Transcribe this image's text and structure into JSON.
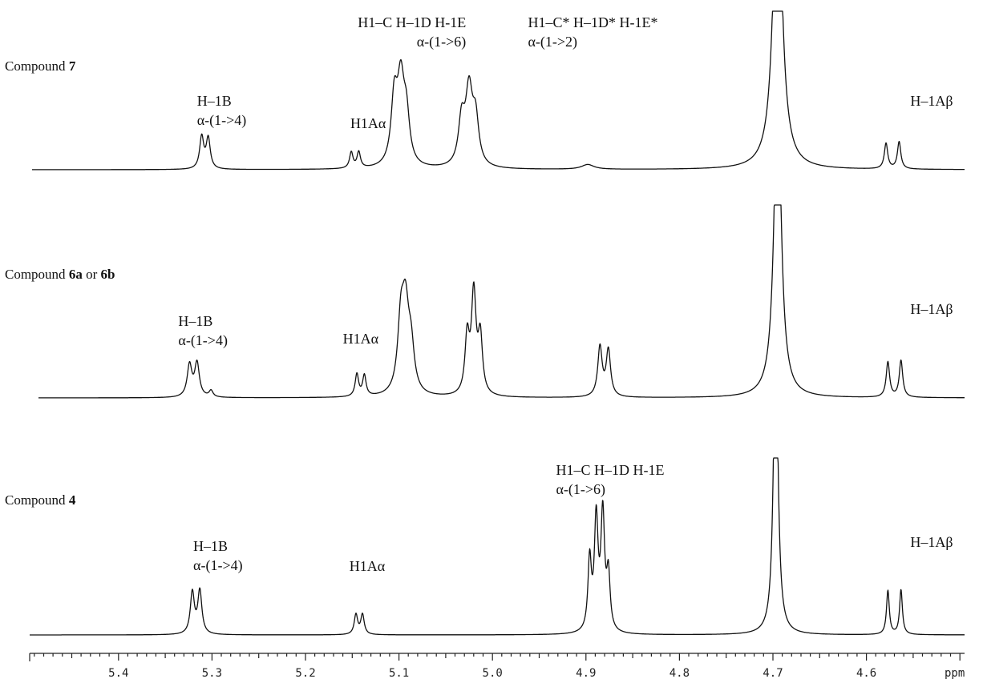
{
  "chart_data": {
    "type": "line",
    "title": "",
    "xlabel": "ppm",
    "xlim": [
      5.495,
      4.495
    ],
    "x_reversed": true,
    "x_ticks": [
      5.4,
      5.3,
      5.2,
      5.1,
      5.0,
      4.9,
      4.8,
      4.7,
      4.6
    ],
    "x_tick_labels": [
      "5.4",
      "5.3",
      "5.2",
      "5.1",
      "5.0",
      "4.9",
      "4.8",
      "4.7",
      "4.6"
    ],
    "spectra": [
      {
        "label_prefix": "Compound ",
        "label_bold": "7",
        "label_mid": "",
        "label_bold2": "",
        "peaks": [
          {
            "ppm": 5.311,
            "h": 40,
            "w": 0.0026
          },
          {
            "ppm": 5.304,
            "h": 38,
            "w": 0.0026
          },
          {
            "ppm": 5.151,
            "h": 20,
            "w": 0.0022
          },
          {
            "ppm": 5.143,
            "h": 20,
            "w": 0.0022
          },
          {
            "ppm": 5.105,
            "h": 80,
            "w": 0.004
          },
          {
            "ppm": 5.098,
            "h": 100,
            "w": 0.0045
          },
          {
            "ppm": 5.092,
            "h": 55,
            "w": 0.004
          },
          {
            "ppm": 5.033,
            "h": 55,
            "w": 0.004
          },
          {
            "ppm": 5.025,
            "h": 92,
            "w": 0.0045
          },
          {
            "ppm": 5.018,
            "h": 55,
            "w": 0.004
          },
          {
            "ppm": 4.898,
            "h": 6,
            "w": 0.008
          },
          {
            "ppm": 4.695,
            "h": 400,
            "w": 0.0055
          },
          {
            "ppm": 4.579,
            "h": 32,
            "w": 0.0022
          },
          {
            "ppm": 4.565,
            "h": 34,
            "w": 0.0022
          }
        ],
        "annotations": [
          {
            "line1": "H–1B",
            "line2": "α-(1->4)",
            "ppm": 5.316,
            "dy": -80
          },
          {
            "line1": "H1Aα",
            "line2": "",
            "ppm": 5.152,
            "dy": -52
          },
          {
            "line1": "H1–C H–1D H-1E",
            "line2": "α-(1->6)",
            "ppm": 5.144,
            "dy": -178
          },
          {
            "line1": "H1–C* H–1D* H-1E*",
            "line2": "α-(1->2)",
            "ppm": 4.962,
            "dy": -178
          },
          {
            "line1": "H–1Aβ",
            "line2": "",
            "ppm": 4.553,
            "dy": -80
          }
        ]
      },
      {
        "label_prefix": "Compound ",
        "label_bold": "6a",
        "label_mid": " or ",
        "label_bold2": "6b",
        "peaks": [
          {
            "ppm": 5.324,
            "h": 40,
            "w": 0.003
          },
          {
            "ppm": 5.316,
            "h": 42,
            "w": 0.003
          },
          {
            "ppm": 5.301,
            "h": 8,
            "w": 0.0025
          },
          {
            "ppm": 5.145,
            "h": 28,
            "w": 0.0022
          },
          {
            "ppm": 5.137,
            "h": 26,
            "w": 0.0022
          },
          {
            "ppm": 5.098,
            "h": 80,
            "w": 0.004
          },
          {
            "ppm": 5.093,
            "h": 100,
            "w": 0.0045
          },
          {
            "ppm": 5.087,
            "h": 50,
            "w": 0.004
          },
          {
            "ppm": 5.027,
            "h": 70,
            "w": 0.0028
          },
          {
            "ppm": 5.02,
            "h": 125,
            "w": 0.003
          },
          {
            "ppm": 5.013,
            "h": 70,
            "w": 0.0028
          },
          {
            "ppm": 4.885,
            "h": 62,
            "w": 0.0028
          },
          {
            "ppm": 4.876,
            "h": 58,
            "w": 0.0028
          },
          {
            "ppm": 4.695,
            "h": 400,
            "w": 0.0045
          },
          {
            "ppm": 4.577,
            "h": 44,
            "w": 0.0022
          },
          {
            "ppm": 4.563,
            "h": 46,
            "w": 0.0022
          }
        ],
        "annotations": [
          {
            "line1": "H–1B",
            "line2": "α-(1->4)",
            "ppm": 5.336,
            "dy": -90
          },
          {
            "line1": "H1Aα",
            "line2": "",
            "ppm": 5.16,
            "dy": -68
          },
          {
            "line1": "H–1Aβ",
            "line2": "",
            "ppm": 4.553,
            "dy": -105
          }
        ]
      },
      {
        "label_prefix": "Compound ",
        "label_bold": "4",
        "label_mid": "",
        "label_bold2": "",
        "peaks": [
          {
            "ppm": 5.321,
            "h": 52,
            "w": 0.0026
          },
          {
            "ppm": 5.313,
            "h": 54,
            "w": 0.0026
          },
          {
            "ppm": 5.146,
            "h": 25,
            "w": 0.0022
          },
          {
            "ppm": 5.139,
            "h": 25,
            "w": 0.0022
          },
          {
            "ppm": 4.896,
            "h": 88,
            "w": 0.0022
          },
          {
            "ppm": 4.889,
            "h": 138,
            "w": 0.0024
          },
          {
            "ppm": 4.882,
            "h": 144,
            "w": 0.0024
          },
          {
            "ppm": 4.876,
            "h": 68,
            "w": 0.0022
          },
          {
            "ppm": 4.697,
            "h": 400,
            "w": 0.0028
          },
          {
            "ppm": 4.577,
            "h": 55,
            "w": 0.0018
          },
          {
            "ppm": 4.563,
            "h": 56,
            "w": 0.0018
          }
        ],
        "annotations": [
          {
            "line1": "H–1B",
            "line2": "α-(1->4)",
            "ppm": 5.32,
            "dy": -105
          },
          {
            "line1": "H1Aα",
            "line2": "",
            "ppm": 5.153,
            "dy": -80
          },
          {
            "line1": "H1–C H–1D H-1E",
            "line2": "α-(1->6)",
            "ppm": 4.932,
            "dy": -200
          },
          {
            "line1": "H–1Aβ",
            "line2": "",
            "ppm": 4.553,
            "dy": -110
          }
        ]
      }
    ]
  }
}
